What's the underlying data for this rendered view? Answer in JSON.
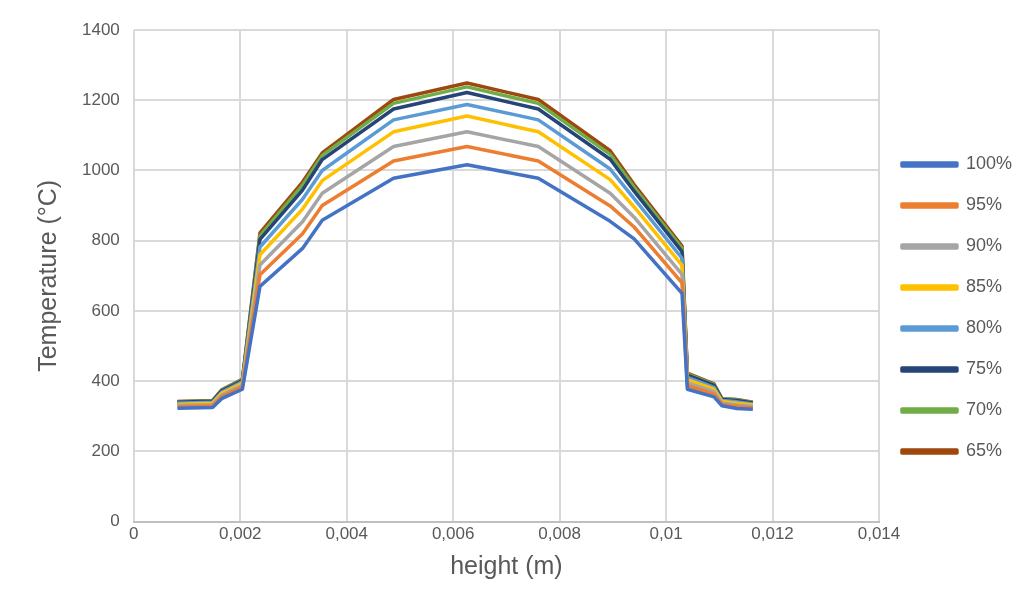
{
  "chart_data": {
    "type": "line",
    "xlabel": "height (m)",
    "ylabel": "Temperature (°C)",
    "x": [
      0.00082,
      0.00148,
      0.00165,
      0.00204,
      0.00237,
      0.00317,
      0.00354,
      0.00488,
      0.00626,
      0.0076,
      0.00895,
      0.0094,
      0.0103,
      0.0104,
      0.0109,
      0.01105,
      0.01133,
      0.01163
    ],
    "xlim": [
      0,
      0.014
    ],
    "xticks": [
      0,
      {
        "value": 0.002,
        "label": "0,002"
      },
      {
        "value": 0.004,
        "label": "0,004"
      },
      {
        "value": 0.006,
        "label": "0,006"
      },
      {
        "value": 0.008,
        "label": "0,008"
      },
      {
        "value": 0.01,
        "label": "0,01"
      },
      {
        "value": 0.012,
        "label": "0,012"
      },
      {
        "value": 0.014,
        "label": "0,014"
      }
    ],
    "ylim": [
      0,
      1400
    ],
    "yticks": [
      0,
      200,
      400,
      600,
      800,
      1000,
      1200,
      1400
    ],
    "grid": true,
    "legend": "right",
    "marker": "none",
    "line_style": "solid",
    "series": [
      {
        "name": "100%",
        "color": "#4472c4",
        "values": [
          323,
          325,
          350,
          377,
          670,
          778,
          858,
          978,
          1016,
          978,
          855,
          805,
          650,
          377,
          355,
          330,
          322,
          320
        ]
      },
      {
        "name": "95%",
        "color": "#ed7d31",
        "values": [
          327,
          329,
          356,
          383,
          703,
          820,
          900,
          1027,
          1068,
          1027,
          899,
          839,
          680,
          387,
          363,
          334,
          328,
          324
        ]
      },
      {
        "name": "90%",
        "color": "#a5a5a5",
        "values": [
          331,
          333,
          360,
          388,
          731,
          854,
          935,
          1068,
          1110,
          1068,
          935,
          867,
          704,
          395,
          370,
          338,
          332,
          328
        ]
      },
      {
        "name": "85%",
        "color": "#ffc000",
        "values": [
          334,
          337,
          365,
          394,
          760,
          890,
          971,
          1110,
          1155,
          1110,
          974,
          896,
          730,
          404,
          377,
          342,
          337,
          332
        ]
      },
      {
        "name": "80%",
        "color": "#5b9bd5",
        "values": [
          337,
          340,
          368,
          398,
          782,
          918,
          1000,
          1144,
          1188,
          1144,
          1004,
          920,
          750,
          411,
          382,
          345,
          341,
          335
        ]
      },
      {
        "name": "75%",
        "color": "#264478",
        "values": [
          340,
          343,
          372,
          402,
          804,
          944,
          1031,
          1175,
          1222,
          1175,
          1032,
          941,
          769,
          417,
          388,
          348,
          345,
          338
        ]
      },
      {
        "name": "70%",
        "color": "#70ad47",
        "values": [
          341,
          344,
          374,
          404,
          814,
          958,
          1043,
          1191,
          1238,
          1191,
          1046,
          952,
          778,
          421,
          390,
          349,
          347,
          339
        ]
      },
      {
        "name": "65%",
        "color": "#9e480e",
        "values": [
          342,
          345,
          375,
          405,
          822,
          967,
          1050,
          1202,
          1249,
          1202,
          1056,
          960,
          785,
          423,
          392,
          350,
          348,
          340
        ]
      }
    ]
  }
}
